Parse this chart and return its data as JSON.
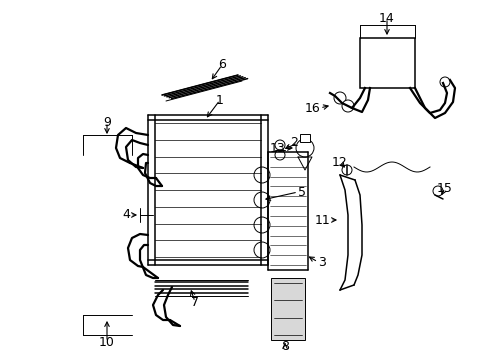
{
  "background_color": "#ffffff",
  "line_color": "#000000",
  "figsize": [
    4.89,
    3.6
  ],
  "dpi": 100,
  "rad": {
    "l": 0.3,
    "r": 0.56,
    "t": 0.18,
    "b": 0.8
  },
  "cond": {
    "l": 0.565,
    "r": 0.615,
    "t": 0.28,
    "b": 0.82
  },
  "label_fs": 9
}
